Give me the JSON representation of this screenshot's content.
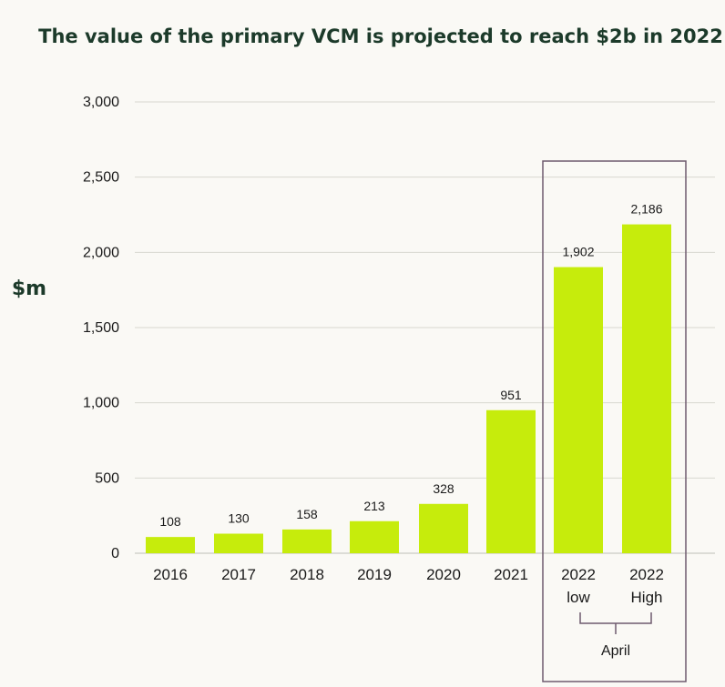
{
  "colors": {
    "bar": "#c6ec0c",
    "text": "#1a1a1a",
    "title": "#1c3a2a",
    "grid": "#d8d8d0",
    "highlight_box": "#6e5a6e",
    "background": "#faf9f5"
  },
  "chart_data": {
    "type": "bar",
    "title": "The value of the primary VCM is projected to reach $2b in 2022",
    "xlabel": "",
    "ylabel": "$m",
    "ylim": [
      0,
      3000
    ],
    "yticks": [
      0,
      500,
      1000,
      1500,
      2000,
      2500,
      3000
    ],
    "ytick_labels": [
      "0",
      "500",
      "1,000",
      "1,500",
      "2,000",
      "2,500",
      "3,000"
    ],
    "grid": true,
    "categories": [
      {
        "line1": "2016",
        "line2": ""
      },
      {
        "line1": "2017",
        "line2": ""
      },
      {
        "line1": "2018",
        "line2": ""
      },
      {
        "line1": "2019",
        "line2": ""
      },
      {
        "line1": "2020",
        "line2": ""
      },
      {
        "line1": "2021",
        "line2": ""
      },
      {
        "line1": "2022",
        "line2": "low"
      },
      {
        "line1": "2022",
        "line2": "High"
      }
    ],
    "values": [
      108,
      130,
      158,
      213,
      328,
      951,
      1902,
      2186
    ],
    "value_labels": [
      "108",
      "130",
      "158",
      "213",
      "328",
      "951",
      "1,902",
      "2,186"
    ],
    "highlight": {
      "start_index": 6,
      "end_index": 7,
      "label": "April"
    }
  }
}
